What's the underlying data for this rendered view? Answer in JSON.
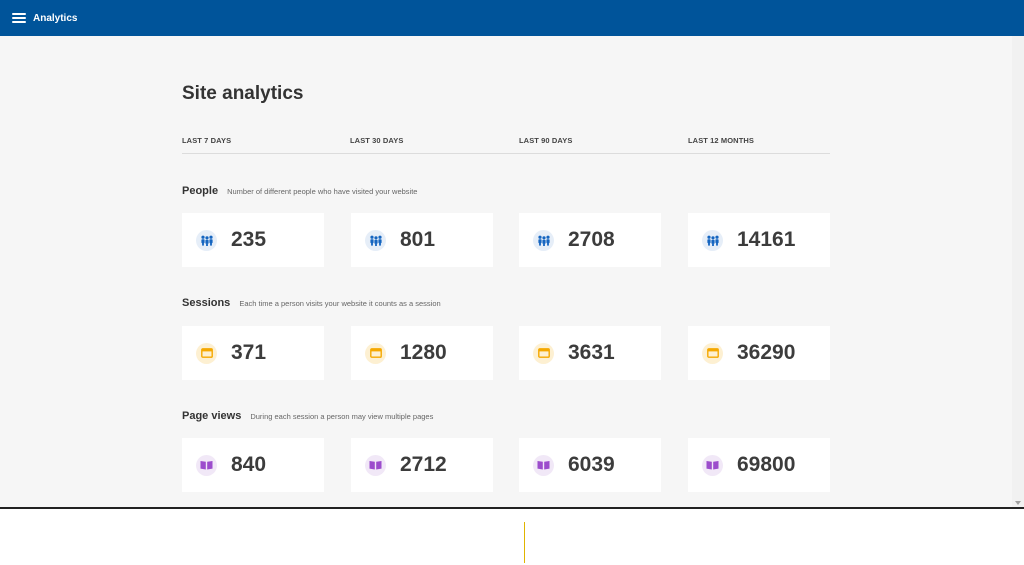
{
  "app": {
    "title": "Analytics",
    "menu_icon": "hamburger-menu-icon"
  },
  "page": {
    "title": "Site analytics"
  },
  "tabs": [
    {
      "label": "LAST 7 DAYS"
    },
    {
      "label": "LAST 30 DAYS"
    },
    {
      "label": "LAST 90 DAYS"
    },
    {
      "label": "LAST 12 MONTHS"
    }
  ],
  "sections": [
    {
      "title": "People",
      "description": "Number of different people who have visited your website",
      "icon": "people-icon",
      "icon_color": "#1565c0",
      "icon_bg": "#e6eef8",
      "values": [
        "235",
        "801",
        "2708",
        "14161"
      ]
    },
    {
      "title": "Sessions",
      "description": "Each time a person visits your website it counts as a session",
      "icon": "browser-window-icon",
      "icon_color": "#f5a800",
      "icon_bg": "#fdf0d2",
      "values": [
        "371",
        "1280",
        "3631",
        "36290"
      ]
    },
    {
      "title": "Page views",
      "description": "During each session a person may view multiple pages",
      "icon": "open-book-icon",
      "icon_color": "#9c4dcc",
      "icon_bg": "#f1e8f7",
      "values": [
        "840",
        "2712",
        "6039",
        "69800"
      ]
    }
  ],
  "colors": {
    "header": "#00549a",
    "background": "#f6f6f6"
  }
}
